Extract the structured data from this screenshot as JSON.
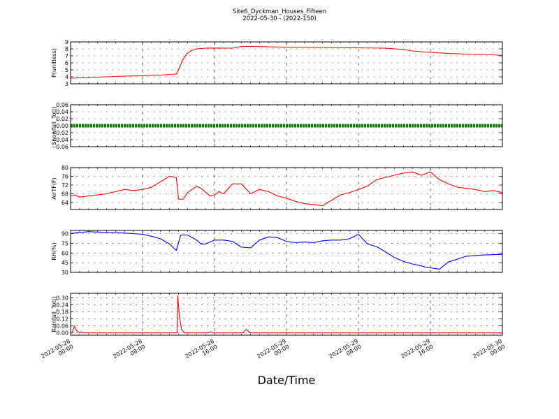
{
  "figure": {
    "title": "Site6_Dyckman_Houses_Fifteen",
    "subtitle": "2022-05-30 - (2022-150)",
    "xlabel": "Date/Time"
  },
  "chart_data": [
    {
      "type": "line",
      "ylabel": "P(unitless)",
      "ylim": [
        3,
        9
      ],
      "yticks": [
        "3",
        "4",
        "5",
        "6",
        "7",
        "8",
        "9"
      ],
      "xlim": [
        "2022-05-28 00:00",
        "2022-05-30 00:00"
      ],
      "grid": true,
      "series": [
        {
          "color": "#ff0000",
          "x": [
            "2022-05-28 00:00",
            "2022-05-28 02:00",
            "2022-05-28 04:00",
            "2022-05-28 06:00",
            "2022-05-28 08:00",
            "2022-05-28 10:00",
            "2022-05-28 11:45",
            "2022-05-28 12:00",
            "2022-05-28 12:30",
            "2022-05-28 13:00",
            "2022-05-28 13:30",
            "2022-05-28 14:00",
            "2022-05-28 15:00",
            "2022-05-28 16:00",
            "2022-05-28 18:00",
            "2022-05-28 19:00",
            "2022-05-28 20:00",
            "2022-05-28 22:00",
            "2022-05-29 00:00",
            "2022-05-29 04:00",
            "2022-05-29 08:00",
            "2022-05-29 11:00",
            "2022-05-29 13:00",
            "2022-05-29 14:00",
            "2022-05-29 16:00",
            "2022-05-29 18:00",
            "2022-05-29 20:00",
            "2022-05-29 23:00",
            "2022-05-30 00:00"
          ],
          "y": [
            3.8,
            3.9,
            4.0,
            4.1,
            4.15,
            4.25,
            4.4,
            5.0,
            6.5,
            7.4,
            7.8,
            8.0,
            8.1,
            8.12,
            8.1,
            8.35,
            8.35,
            8.3,
            8.25,
            8.2,
            8.15,
            8.1,
            7.9,
            7.7,
            7.5,
            7.35,
            7.25,
            7.15,
            7.05
          ]
        }
      ]
    },
    {
      "type": "line",
      "ylabel": "Snowfall_Tot()",
      "ylim": [
        -0.06,
        0.06
      ],
      "yticks": [
        "−0.06",
        "−0.04",
        "−0.02",
        "0.00",
        "0.02",
        "0.04",
        "0.06"
      ],
      "xlim": [
        "2022-05-28 00:00",
        "2022-05-30 00:00"
      ],
      "grid": true,
      "series": [
        {
          "color": "#008000",
          "markers": true,
          "x": [
            "2022-05-28 00:00",
            "2022-05-30 00:00"
          ],
          "y": [
            0,
            0
          ]
        }
      ]
    },
    {
      "type": "line",
      "ylabel": "AirTF(F)",
      "ylim": [
        60.8,
        80
      ],
      "yticks": [
        "64",
        "68",
        "72",
        "76",
        "80"
      ],
      "xlim": [
        "2022-05-28 00:00",
        "2022-05-30 00:00"
      ],
      "grid": true,
      "series": [
        {
          "color": "#ff0000",
          "x": [
            "2022-05-28 00:00",
            "2022-05-28 00:30",
            "2022-05-28 01:00",
            "2022-05-28 02:00",
            "2022-05-28 03:00",
            "2022-05-28 04:00",
            "2022-05-28 05:00",
            "2022-05-28 06:00",
            "2022-05-28 07:00",
            "2022-05-28 08:00",
            "2022-05-28 09:00",
            "2022-05-28 10:00",
            "2022-05-28 11:00",
            "2022-05-28 11:45",
            "2022-05-28 12:00",
            "2022-05-28 12:30",
            "2022-05-28 13:00",
            "2022-05-28 14:00",
            "2022-05-28 14:30",
            "2022-05-28 15:30",
            "2022-05-28 16:00",
            "2022-05-28 16:30",
            "2022-05-28 17:00",
            "2022-05-28 18:00",
            "2022-05-28 19:00",
            "2022-05-28 20:00",
            "2022-05-28 21:00",
            "2022-05-28 22:00",
            "2022-05-28 23:00",
            "2022-05-29 00:00",
            "2022-05-29 01:00",
            "2022-05-29 02:00",
            "2022-05-29 03:00",
            "2022-05-29 04:00",
            "2022-05-29 05:00",
            "2022-05-29 06:00",
            "2022-05-29 07:00",
            "2022-05-29 08:00",
            "2022-05-29 09:00",
            "2022-05-29 10:00",
            "2022-05-29 11:00",
            "2022-05-29 12:00",
            "2022-05-29 13:00",
            "2022-05-29 14:00",
            "2022-05-29 15:00",
            "2022-05-29 16:00",
            "2022-05-29 17:00",
            "2022-05-29 18:00",
            "2022-05-29 19:00",
            "2022-05-29 20:00",
            "2022-05-29 21:00",
            "2022-05-29 22:00",
            "2022-05-29 23:00",
            "2022-05-30 00:00"
          ],
          "y": [
            67.0,
            67.5,
            66.5,
            67.0,
            67.5,
            68.0,
            69.0,
            70.0,
            69.5,
            70.0,
            71.0,
            73.5,
            76.0,
            75.5,
            65.5,
            65.5,
            68.5,
            71.5,
            70.5,
            67.0,
            67.5,
            69.0,
            68.0,
            72.5,
            72.5,
            68.0,
            70.0,
            69.0,
            67.0,
            66.0,
            64.5,
            63.5,
            63.0,
            62.5,
            65.0,
            67.5,
            68.5,
            70.0,
            71.5,
            74.5,
            75.5,
            76.5,
            77.5,
            78.0,
            76.5,
            78.0,
            74.5,
            72.5,
            71.0,
            70.5,
            70.0,
            69.0,
            69.5,
            68.5
          ]
        }
      ]
    },
    {
      "type": "line",
      "ylabel": "RH(%)",
      "ylim": [
        30,
        95
      ],
      "yticks": [
        "30",
        "45",
        "60",
        "75",
        "90"
      ],
      "xlim": [
        "2022-05-28 00:00",
        "2022-05-30 00:00"
      ],
      "grid": true,
      "series": [
        {
          "color": "#0000ff",
          "x": [
            "2022-05-28 00:00",
            "2022-05-28 01:00",
            "2022-05-28 02:00",
            "2022-05-28 04:00",
            "2022-05-28 06:00",
            "2022-05-28 08:00",
            "2022-05-28 09:00",
            "2022-05-28 10:00",
            "2022-05-28 11:00",
            "2022-05-28 11:45",
            "2022-05-28 12:15",
            "2022-05-28 13:00",
            "2022-05-28 14:00",
            "2022-05-28 14:30",
            "2022-05-28 15:00",
            "2022-05-28 16:00",
            "2022-05-28 17:00",
            "2022-05-28 18:00",
            "2022-05-28 19:00",
            "2022-05-28 20:00",
            "2022-05-28 21:00",
            "2022-05-28 22:00",
            "2022-05-28 23:00",
            "2022-05-29 00:00",
            "2022-05-29 01:00",
            "2022-05-29 02:00",
            "2022-05-29 03:00",
            "2022-05-29 04:00",
            "2022-05-29 05:00",
            "2022-05-29 06:00",
            "2022-05-29 07:00",
            "2022-05-29 08:00",
            "2022-05-29 09:00",
            "2022-05-29 10:00",
            "2022-05-29 11:00",
            "2022-05-29 12:00",
            "2022-05-29 13:00",
            "2022-05-29 14:00",
            "2022-05-29 15:00",
            "2022-05-29 15:30",
            "2022-05-29 16:00",
            "2022-05-29 17:00",
            "2022-05-29 18:00",
            "2022-05-29 20:00",
            "2022-05-29 22:00",
            "2022-05-30 00:00"
          ],
          "y": [
            90,
            92,
            93,
            92,
            91,
            89,
            86,
            82,
            74,
            64,
            88,
            88,
            80,
            74,
            74,
            80,
            80,
            78,
            69,
            68,
            80,
            85,
            84,
            78,
            76,
            77,
            76,
            79,
            80,
            80,
            82,
            89,
            74,
            70,
            62,
            53,
            47,
            43,
            40,
            38,
            37,
            35,
            46,
            55,
            57,
            58
          ]
        }
      ]
    },
    {
      "type": "line",
      "ylabel": "Rainfall_Tot()",
      "ylim": [
        -0.02,
        0.34
      ],
      "yticks": [
        "0.00",
        "0.06",
        "0.12",
        "0.18",
        "0.24",
        "0.30"
      ],
      "xticks": [
        "2022-05-28\n00:00",
        "2022-05-28\n08:00",
        "2022-05-28\n16:00",
        "2022-05-29\n00:00",
        "2022-05-29\n08:00",
        "2022-05-29\n16:00",
        "2022-05-30\n00:00"
      ],
      "xlim": [
        "2022-05-28 00:00",
        "2022-05-30 00:00"
      ],
      "grid": true,
      "series": [
        {
          "color": "#ff0000",
          "x": [
            "2022-05-28 00:00",
            "2022-05-28 00:10",
            "2022-05-28 00:25",
            "2022-05-28 00:40",
            "2022-05-28 01:00",
            "2022-05-28 01:10",
            "2022-05-28 01:20",
            "2022-05-28 11:50",
            "2022-05-28 11:55",
            "2022-05-28 12:05",
            "2022-05-28 12:20",
            "2022-05-28 12:40",
            "2022-05-28 15:20",
            "2022-05-28 15:35",
            "2022-05-28 15:50",
            "2022-05-28 19:10",
            "2022-05-28 19:30",
            "2022-05-28 20:00",
            "2022-05-30 00:00"
          ],
          "y": [
            0.0,
            0.0,
            0.06,
            0.02,
            0.0,
            0.01,
            0.0,
            0.0,
            0.32,
            0.15,
            0.03,
            0.0,
            0.0,
            0.01,
            0.0,
            0.0,
            0.03,
            0.0,
            0.0
          ]
        }
      ]
    }
  ]
}
